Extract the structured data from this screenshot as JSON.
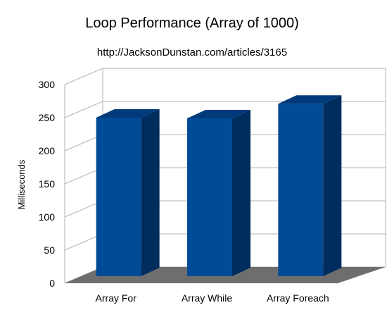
{
  "chart_data": {
    "type": "bar",
    "title": "Loop Performance (Array of 1000)",
    "subtitle": "http://JacksonDunstan.com/articles/3165",
    "xlabel": "",
    "ylabel": "Milliseconds",
    "categories": [
      "Array For",
      "Array While",
      "Array Foreach"
    ],
    "series": [
      {
        "values": [
          250,
          249,
          271
        ]
      }
    ],
    "ylim": [
      0,
      300
    ],
    "yticks": [
      "0",
      "50",
      "100",
      "150",
      "200",
      "250",
      "300"
    ],
    "grid": true,
    "legend": "none",
    "style": "3d",
    "colors": {
      "bar_front": "#004a96",
      "bar_side": "#002c5e",
      "bar_top": "#003a7a",
      "floor": "#6e6e6e",
      "grid": "#b3b3b3"
    }
  }
}
